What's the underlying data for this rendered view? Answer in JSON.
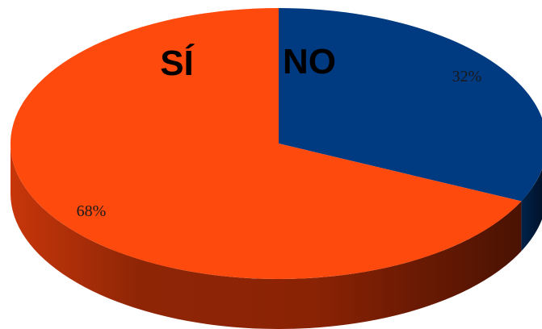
{
  "chart_data": {
    "type": "pie",
    "style": "3d",
    "categories": [
      "SÍ",
      "NO"
    ],
    "values": [
      68,
      32
    ],
    "value_labels": [
      "68%",
      "32%"
    ],
    "colors": [
      "#ff4a0d",
      "#003a80"
    ],
    "side_colors": [
      "#b12f05",
      "#001b3f"
    ]
  }
}
